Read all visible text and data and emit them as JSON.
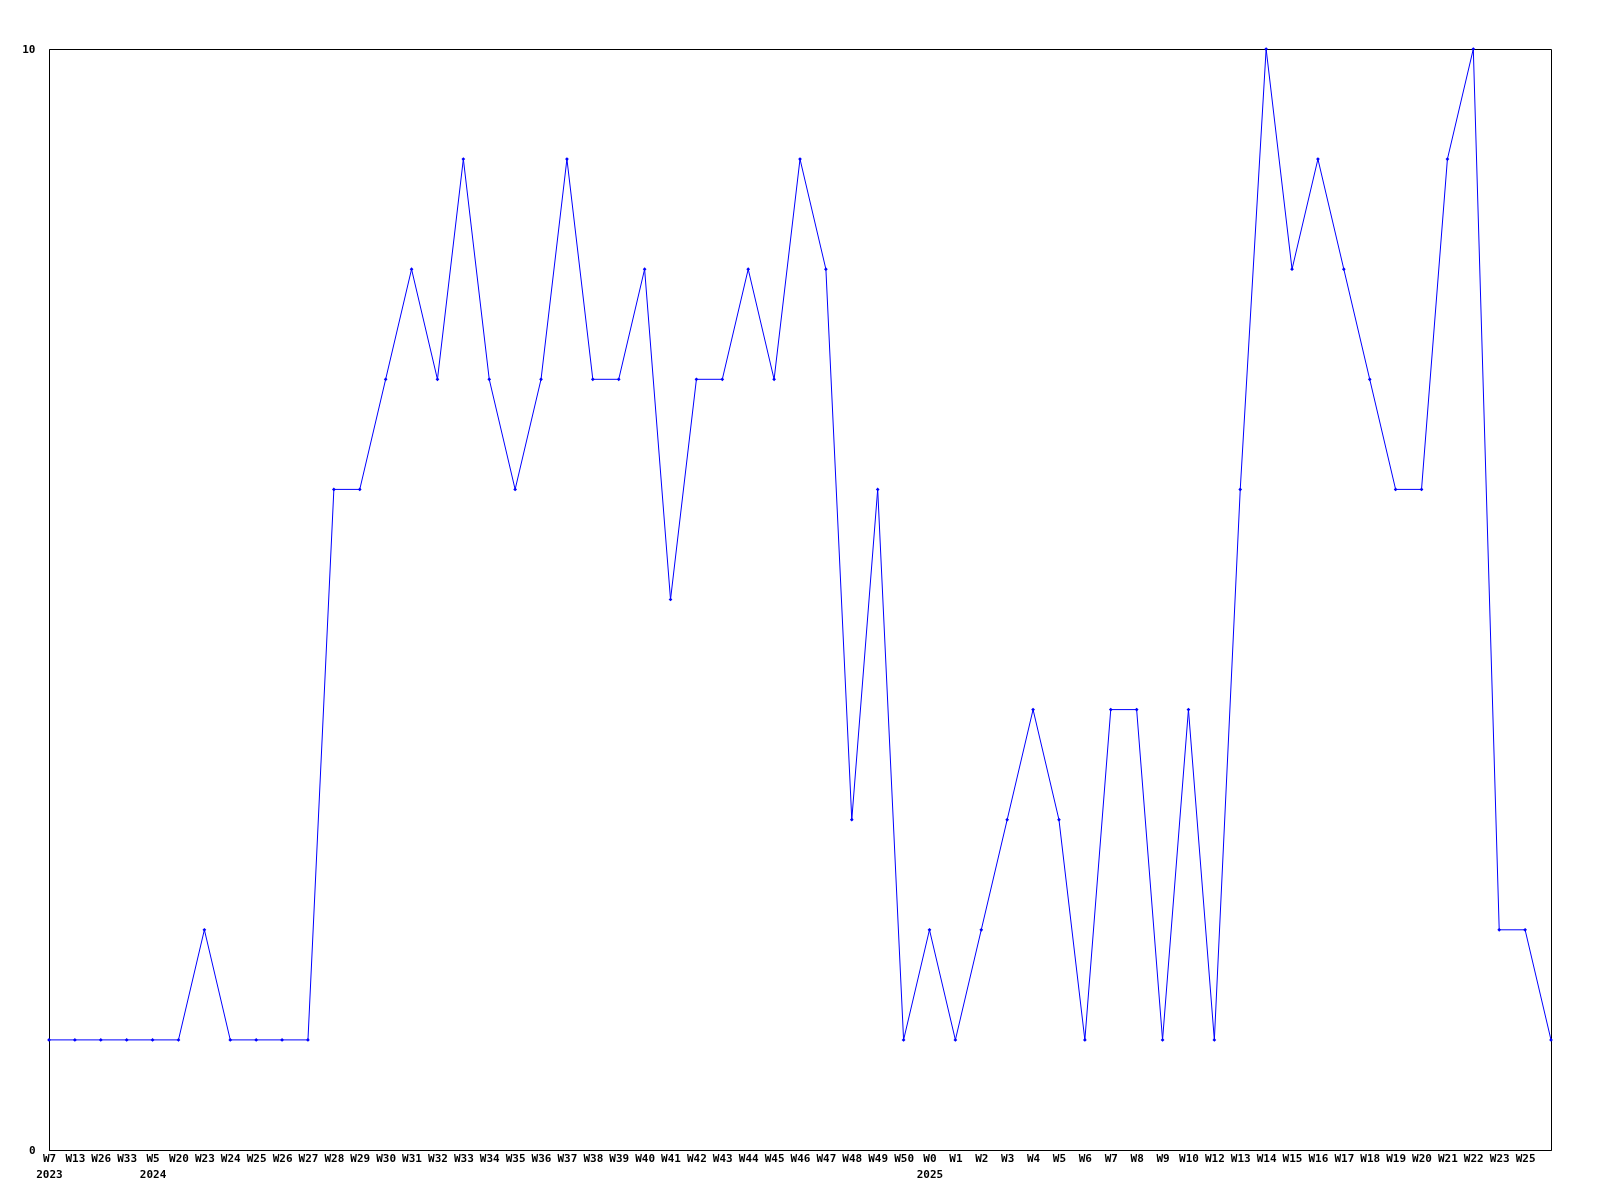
{
  "chart_data": {
    "type": "line",
    "categories": [
      "W7\n2023",
      "W13",
      "W26",
      "W33",
      "W5\n2024",
      "W20",
      "W23",
      "W24",
      "W25",
      "W26",
      "W27",
      "W28",
      "W29",
      "W30",
      "W31",
      "W32",
      "W33",
      "W34",
      "W35",
      "W36",
      "W37",
      "W38",
      "W39",
      "W40",
      "W41",
      "W42",
      "W43",
      "W44",
      "W45",
      "W46",
      "W47",
      "W48",
      "W49",
      "W50",
      "W0\n2025",
      "W1",
      "W2",
      "W3",
      "W4",
      "W5",
      "W6",
      "W7",
      "W8",
      "W9",
      "W10",
      "W12",
      "W13",
      "W14",
      "W15",
      "W16",
      "W17",
      "W18",
      "W19",
      "W20",
      "W21",
      "W22",
      "W23",
      "W25",
      null
    ],
    "series": [
      {
        "color": "#0000ff",
        "values": [
          1,
          1,
          1,
          1,
          1,
          1,
          2,
          1,
          1,
          1,
          1,
          6,
          6,
          7,
          8,
          7,
          9,
          7,
          6,
          7,
          9,
          7,
          7,
          8,
          5,
          7,
          7,
          8,
          7,
          9,
          8,
          3,
          6,
          1,
          2,
          1,
          2,
          3,
          4,
          3,
          1,
          4,
          4,
          1,
          4,
          1,
          6,
          10,
          8,
          9,
          8,
          7,
          6,
          6,
          9,
          10,
          2,
          2,
          1
        ]
      }
    ],
    "ylim": [
      0,
      10
    ],
    "yticks": [
      0,
      10
    ],
    "grid": false,
    "marker": "diamond",
    "line_style": "solid"
  }
}
